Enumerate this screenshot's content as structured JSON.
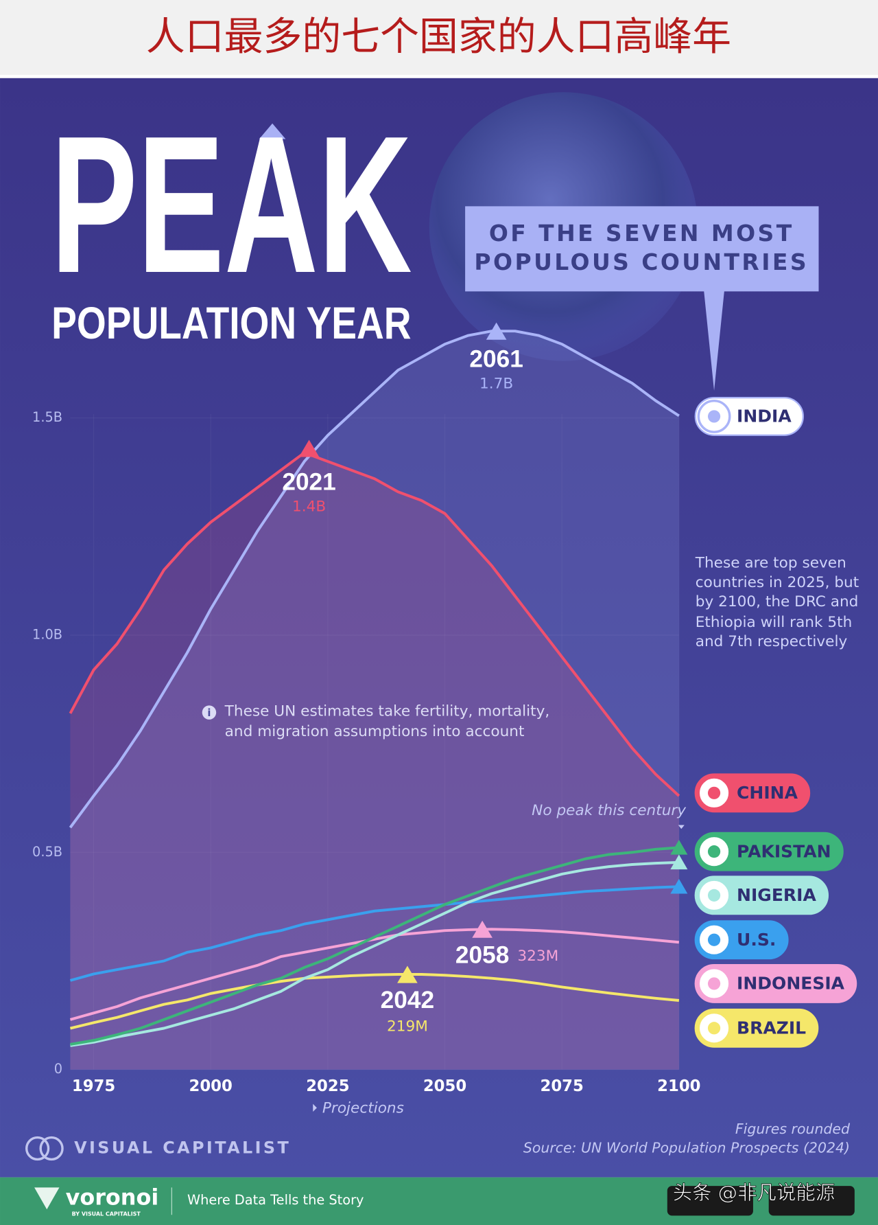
{
  "banner": {
    "title": "人口最多的七个国家的人口高峰年"
  },
  "chart_data": {
    "type": "line",
    "title": "PEAK",
    "subtitle": "POPULATION YEAR",
    "callout": [
      "OF THE SEVEN MOST",
      "POPULOUS COUNTRIES"
    ],
    "note": [
      "These are top seven",
      "countries in 2025, but",
      "by 2100, the DRC and",
      "Ethiopia will rank 5th",
      "and 7th respectively"
    ],
    "info": [
      "These UN estimates take fertility, mortality,",
      "and migration assumptions into account"
    ],
    "no_peak_label": "No peak this century",
    "projections_label": "Projections",
    "x": [
      1970,
      1975,
      1980,
      1985,
      1990,
      1995,
      2000,
      2005,
      2010,
      2015,
      2020,
      2025,
      2030,
      2035,
      2040,
      2045,
      2050,
      2055,
      2060,
      2065,
      2070,
      2075,
      2080,
      2085,
      2090,
      2095,
      2100
    ],
    "xlim": [
      1970,
      2100
    ],
    "xticks": [
      1975,
      2000,
      2025,
      2050,
      2075,
      2100
    ],
    "ylim": [
      0,
      1.75
    ],
    "yticks": [
      0,
      {
        "value": 0.5,
        "label": "0.5B"
      },
      {
        "value": 1,
        "label": "1.0B"
      },
      {
        "value": 1.5,
        "label": "1.5B"
      }
    ],
    "grid": true,
    "series": [
      {
        "name": "INDIA",
        "color": "#aab4f8",
        "area": true,
        "end_marker": false,
        "values": [
          0.557,
          0.63,
          0.7,
          0.78,
          0.87,
          0.96,
          1.06,
          1.15,
          1.24,
          1.32,
          1.4,
          1.46,
          1.51,
          1.56,
          1.61,
          1.64,
          1.67,
          1.69,
          1.7,
          1.7,
          1.69,
          1.67,
          1.64,
          1.61,
          1.58,
          1.54,
          1.505
        ]
      },
      {
        "name": "CHINA",
        "color": "#f0506e",
        "area": true,
        "end_marker": false,
        "values": [
          0.82,
          0.92,
          0.98,
          1.06,
          1.15,
          1.21,
          1.26,
          1.3,
          1.34,
          1.38,
          1.42,
          1.4,
          1.38,
          1.36,
          1.33,
          1.31,
          1.28,
          1.22,
          1.16,
          1.09,
          1.02,
          0.95,
          0.88,
          0.81,
          0.74,
          0.68,
          0.63
        ]
      },
      {
        "name": "PAKISTAN",
        "color": "#3db57a",
        "area": false,
        "end_marker": true,
        "values": [
          0.058,
          0.067,
          0.08,
          0.095,
          0.115,
          0.135,
          0.155,
          0.175,
          0.195,
          0.21,
          0.235,
          0.255,
          0.28,
          0.305,
          0.33,
          0.355,
          0.38,
          0.4,
          0.42,
          0.44,
          0.455,
          0.47,
          0.485,
          0.495,
          0.5,
          0.507,
          0.511
        ]
      },
      {
        "name": "NIGERIA",
        "color": "#a6e8e0",
        "area": false,
        "end_marker": true,
        "values": [
          0.055,
          0.063,
          0.075,
          0.085,
          0.095,
          0.11,
          0.125,
          0.14,
          0.16,
          0.18,
          0.21,
          0.23,
          0.26,
          0.285,
          0.31,
          0.335,
          0.36,
          0.385,
          0.405,
          0.42,
          0.435,
          0.45,
          0.46,
          0.467,
          0.472,
          0.475,
          0.477
        ]
      },
      {
        "name": "U.S.",
        "color": "#3aa0ee",
        "area": false,
        "end_marker": true,
        "values": [
          0.205,
          0.22,
          0.23,
          0.24,
          0.25,
          0.27,
          0.28,
          0.295,
          0.31,
          0.32,
          0.335,
          0.345,
          0.355,
          0.365,
          0.37,
          0.375,
          0.38,
          0.385,
          0.39,
          0.395,
          0.4,
          0.405,
          0.41,
          0.413,
          0.416,
          0.419,
          0.421
        ]
      },
      {
        "name": "INDONESIA",
        "color": "#f6a3d6",
        "area": false,
        "end_marker": false,
        "values": [
          0.115,
          0.13,
          0.145,
          0.165,
          0.18,
          0.195,
          0.21,
          0.225,
          0.24,
          0.26,
          0.27,
          0.28,
          0.29,
          0.3,
          0.31,
          0.315,
          0.32,
          0.322,
          0.323,
          0.322,
          0.32,
          0.317,
          0.313,
          0.308,
          0.303,
          0.298,
          0.293
        ]
      },
      {
        "name": "BRAZIL",
        "color": "#f5e76a",
        "area": false,
        "end_marker": false,
        "values": [
          0.095,
          0.108,
          0.12,
          0.135,
          0.15,
          0.16,
          0.175,
          0.185,
          0.195,
          0.203,
          0.21,
          0.213,
          0.216,
          0.218,
          0.219,
          0.219,
          0.217,
          0.214,
          0.21,
          0.205,
          0.198,
          0.19,
          0.183,
          0.176,
          0.17,
          0.164,
          0.159
        ]
      }
    ],
    "peaks": [
      {
        "year": 2061,
        "value": 1.7,
        "value_label": "1.7B",
        "color": "#aab4f8"
      },
      {
        "year": 2021,
        "value": 1.43,
        "value_label": "1.4B",
        "color": "#f0506e"
      },
      {
        "year": 2058,
        "value": 0.323,
        "value_label": "323M",
        "color": "#f6a3d6"
      },
      {
        "year": 2042,
        "value": 0.219,
        "value_label": "219M",
        "color": "#f5e76a"
      }
    ],
    "figures_note": "Figures rounded",
    "source": "Source: UN World Population Prospects (2024)"
  },
  "footer": {
    "brand": "VISUAL CAPITALIST",
    "logo": "voronoi",
    "logo_sub": "BY VISUAL CAPITALIST",
    "tagline": "Where Data Tells the Story",
    "watermark": "头条 @非凡说能源"
  }
}
